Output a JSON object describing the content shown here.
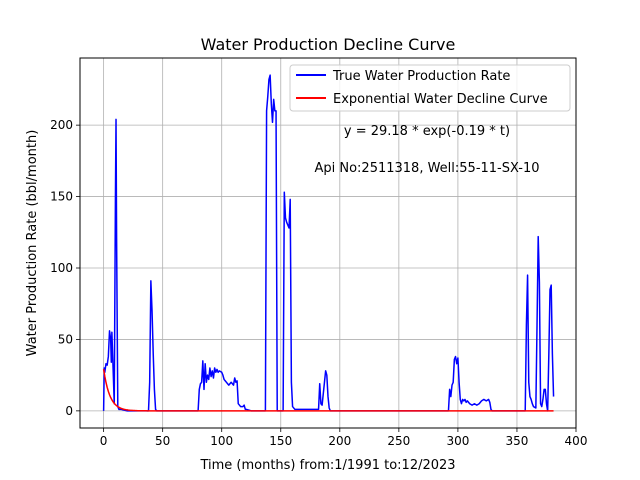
{
  "chart_data": {
    "type": "line",
    "title": "Water Production Decline Curve",
    "xlabel": "Time (months) from:1/1991 to:12/2023",
    "ylabel": "Water Production Rate (bbl/month)",
    "xlim": [
      -20,
      400
    ],
    "ylim": [
      -12,
      247
    ],
    "xticks": [
      0,
      50,
      100,
      150,
      200,
      250,
      300,
      350,
      400
    ],
    "yticks": [
      0,
      50,
      100,
      150,
      200
    ],
    "grid": true,
    "legend_position": "top-right",
    "annotations": [
      "y = 29.18 * exp(-0.19 * t)",
      "Api No:2511318, Well:55-11-SX-10"
    ],
    "series": [
      {
        "name": "True Water Production Rate",
        "color": "#0000ff",
        "points": [
          [
            0,
            0
          ],
          [
            0.5,
            30
          ],
          [
            1,
            27
          ],
          [
            2,
            33
          ],
          [
            3,
            32
          ],
          [
            4,
            38
          ],
          [
            5,
            56
          ],
          [
            6,
            50
          ],
          [
            6.5,
            34
          ],
          [
            7,
            55
          ],
          [
            8,
            30
          ],
          [
            9,
            5
          ],
          [
            10,
            150
          ],
          [
            10.5,
            204
          ],
          [
            11,
            120
          ],
          [
            12,
            3
          ],
          [
            13,
            1
          ],
          [
            15,
            1
          ],
          [
            20,
            0
          ],
          [
            30,
            0
          ],
          [
            38,
            0
          ],
          [
            39,
            20
          ],
          [
            40,
            91
          ],
          [
            41,
            70
          ],
          [
            42,
            40
          ],
          [
            43,
            15
          ],
          [
            44,
            1
          ],
          [
            45,
            0
          ],
          [
            60,
            0
          ],
          [
            80,
            0
          ],
          [
            81,
            15
          ],
          [
            82,
            19
          ],
          [
            83,
            20
          ],
          [
            84,
            35
          ],
          [
            85,
            15
          ],
          [
            86,
            33
          ],
          [
            87,
            20
          ],
          [
            88,
            25
          ],
          [
            89,
            22
          ],
          [
            90,
            30
          ],
          [
            91,
            24
          ],
          [
            92,
            28
          ],
          [
            93,
            23
          ],
          [
            94,
            30
          ],
          [
            95,
            27
          ],
          [
            96,
            29
          ],
          [
            97,
            27
          ],
          [
            98,
            28
          ],
          [
            100,
            27
          ],
          [
            101,
            25
          ],
          [
            102,
            22
          ],
          [
            103,
            21
          ],
          [
            104,
            20
          ],
          [
            105,
            19
          ],
          [
            106,
            18
          ],
          [
            108,
            20
          ],
          [
            110,
            18
          ],
          [
            111,
            23
          ],
          [
            112,
            20
          ],
          [
            113,
            21
          ],
          [
            114,
            5
          ],
          [
            116,
            3
          ],
          [
            118,
            3
          ],
          [
            119,
            4
          ],
          [
            120,
            1
          ],
          [
            121,
            1
          ],
          [
            125,
            0
          ],
          [
            135,
            0
          ],
          [
            137,
            0
          ],
          [
            138,
            210
          ],
          [
            139,
            220
          ],
          [
            140,
            232
          ],
          [
            141,
            235
          ],
          [
            142,
            215
          ],
          [
            143,
            202
          ],
          [
            144,
            218
          ],
          [
            145,
            210
          ],
          [
            146,
            210
          ],
          [
            147,
            0
          ],
          [
            150,
            0
          ],
          [
            152,
            0
          ],
          [
            153,
            153
          ],
          [
            154,
            135
          ],
          [
            155,
            132
          ],
          [
            156,
            130
          ],
          [
            157,
            128
          ],
          [
            158,
            148
          ],
          [
            159,
            20
          ],
          [
            160,
            3
          ],
          [
            162,
            1
          ],
          [
            170,
            1
          ],
          [
            180,
            1
          ],
          [
            182,
            1
          ],
          [
            183,
            19
          ],
          [
            184,
            5
          ],
          [
            185,
            4
          ],
          [
            186,
            12
          ],
          [
            187,
            20
          ],
          [
            188,
            28
          ],
          [
            189,
            25
          ],
          [
            190,
            10
          ],
          [
            191,
            2
          ],
          [
            192,
            0
          ],
          [
            200,
            0
          ],
          [
            250,
            0
          ],
          [
            292,
            0
          ],
          [
            293,
            15
          ],
          [
            294,
            10
          ],
          [
            295,
            18
          ],
          [
            296,
            20
          ],
          [
            297,
            36
          ],
          [
            298,
            38
          ],
          [
            299,
            33
          ],
          [
            300,
            37
          ],
          [
            301,
            20
          ],
          [
            302,
            8
          ],
          [
            303,
            5
          ],
          [
            304,
            8
          ],
          [
            305,
            7
          ],
          [
            306,
            8
          ],
          [
            307,
            6
          ],
          [
            308,
            7
          ],
          [
            310,
            5
          ],
          [
            312,
            4
          ],
          [
            314,
            5
          ],
          [
            316,
            4
          ],
          [
            318,
            5
          ],
          [
            320,
            7
          ],
          [
            322,
            8
          ],
          [
            324,
            7
          ],
          [
            326,
            8
          ],
          [
            327,
            6
          ],
          [
            328,
            1
          ],
          [
            329,
            0
          ],
          [
            340,
            0
          ],
          [
            357,
            0
          ],
          [
            358,
            60
          ],
          [
            359,
            95
          ],
          [
            360,
            20
          ],
          [
            361,
            10
          ],
          [
            362,
            8
          ],
          [
            363,
            5
          ],
          [
            364,
            3
          ],
          [
            366,
            2
          ],
          [
            367,
            60
          ],
          [
            368,
            122
          ],
          [
            369,
            90
          ],
          [
            370,
            5
          ],
          [
            371,
            3
          ],
          [
            372,
            8
          ],
          [
            373,
            15
          ],
          [
            374,
            15
          ],
          [
            375,
            5
          ],
          [
            376,
            0
          ],
          [
            377,
            40
          ],
          [
            378,
            85
          ],
          [
            379,
            88
          ],
          [
            380,
            40
          ],
          [
            381,
            10
          ]
        ]
      },
      {
        "name": "Exponential Water Decline Curve",
        "color": "#ff0000",
        "function": {
          "a": 29.18,
          "b": 0.19
        },
        "x_range": [
          0,
          381
        ]
      }
    ]
  }
}
